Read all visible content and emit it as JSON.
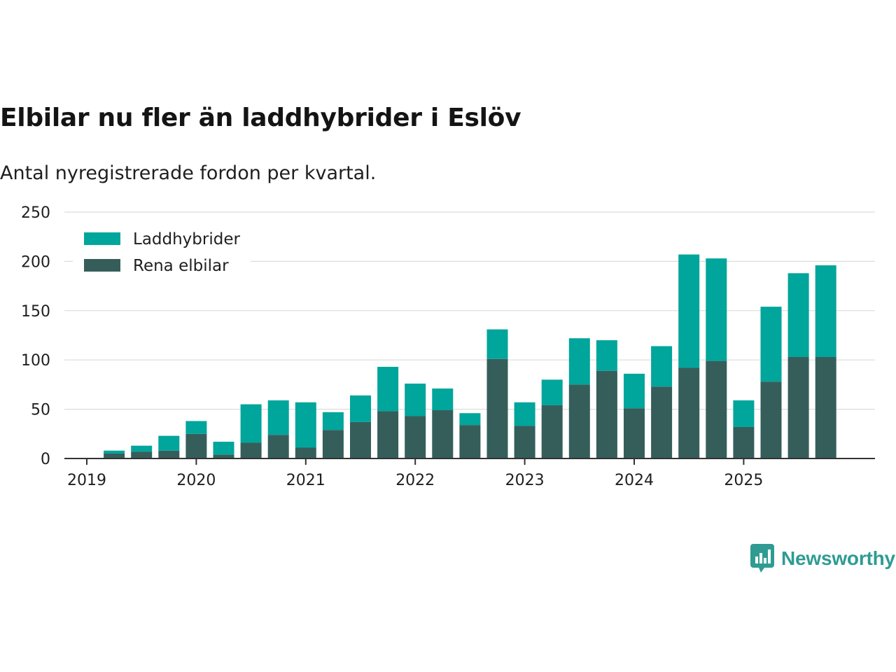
{
  "title": "Elbilar nu fler än laddhybrider i Eslöv",
  "subtitle": "Antal nyregistrerade fordon per kvartal.",
  "brand": {
    "name": "Newsworthy",
    "icon": "newsworthy-logo-icon",
    "color": "#2e9c92"
  },
  "colors": {
    "laddhybrider": "#00a59b",
    "rena_elbilar": "#355e5b",
    "grid": "#dcdcdc",
    "axis": "#333333"
  },
  "chart_data": {
    "type": "bar",
    "stacked": true,
    "title": "Elbilar nu fler än laddhybrider i Eslöv",
    "subtitle": "Antal nyregistrerade fordon per kvartal.",
    "xlabel": "",
    "ylabel": "",
    "ylim": [
      0,
      250
    ],
    "yticks": [
      0,
      50,
      100,
      150,
      200,
      250
    ],
    "xtick_labels": [
      "2019",
      "2020",
      "2021",
      "2022",
      "2023",
      "2024",
      "2025"
    ],
    "legend_position": "top-left",
    "categories": [
      "2019 Q1",
      "2019 Q2",
      "2019 Q3",
      "2019 Q4",
      "2020 Q1",
      "2020 Q2",
      "2020 Q3",
      "2020 Q4",
      "2021 Q1",
      "2021 Q2",
      "2021 Q3",
      "2021 Q4",
      "2022 Q1",
      "2022 Q2",
      "2022 Q3",
      "2022 Q4",
      "2023 Q1",
      "2023 Q2",
      "2023 Q3",
      "2023 Q4",
      "2024 Q1",
      "2024 Q2",
      "2024 Q3",
      "2024 Q4",
      "2025 Q1",
      "2025 Q2",
      "2025 Q3",
      "2025 Q4"
    ],
    "series": [
      {
        "name": "Rena elbilar",
        "key": "rena_elbilar",
        "values": [
          0,
          5,
          7,
          8,
          25,
          4,
          16,
          24,
          11,
          29,
          37,
          48,
          43,
          49,
          34,
          101,
          33,
          54,
          75,
          89,
          51,
          73,
          92,
          99,
          32,
          78,
          103,
          103
        ]
      },
      {
        "name": "Laddhybrider",
        "key": "laddhybrider",
        "values": [
          0,
          3,
          6,
          15,
          13,
          13,
          39,
          35,
          46,
          18,
          27,
          45,
          33,
          22,
          12,
          30,
          24,
          26,
          47,
          31,
          35,
          41,
          115,
          104,
          27,
          76,
          85,
          93
        ]
      }
    ],
    "legend": [
      "Laddhybrider",
      "Rena elbilar"
    ]
  }
}
